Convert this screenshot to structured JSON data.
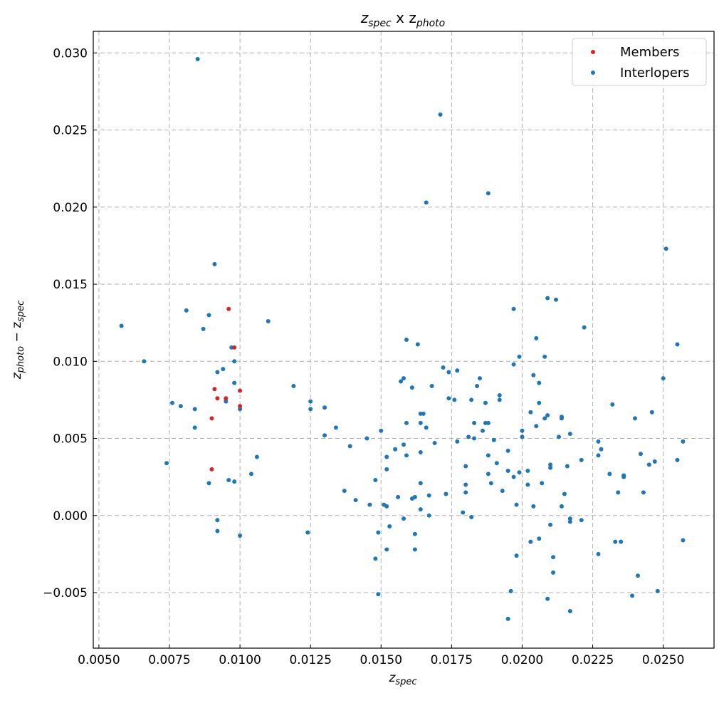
{
  "chart_data": {
    "type": "scatter",
    "title": {
      "main": "z",
      "sub1": "spec",
      "mid": " x z",
      "sub2": "photo"
    },
    "xlabel": {
      "main": "z",
      "sub": "spec"
    },
    "ylabel": {
      "a": "z",
      "a_sub": "photo",
      "op": " − z",
      "b_sub": "spec"
    },
    "xlim": [
      0.0048,
      0.0268
    ],
    "ylim": [
      -0.0086,
      0.0314
    ],
    "xticks": [
      "0.0050",
      "0.0075",
      "0.0100",
      "0.0125",
      "0.0150",
      "0.0175",
      "0.0200",
      "0.0225",
      "0.0250"
    ],
    "yticks": [
      "−0.005",
      "0.000",
      "0.005",
      "0.010",
      "0.015",
      "0.020",
      "0.025",
      "0.030"
    ],
    "grid": true,
    "legend_position": "top-right",
    "series": [
      {
        "name": "Members",
        "color": "#d62728",
        "points": [
          [
            0.0096,
            0.0134
          ],
          [
            0.0098,
            0.0109
          ],
          [
            0.0091,
            0.0082
          ],
          [
            0.0092,
            0.0076
          ],
          [
            0.0095,
            0.0076
          ],
          [
            0.01,
            0.0081
          ],
          [
            0.01,
            0.0071
          ],
          [
            0.009,
            0.0063
          ],
          [
            0.009,
            0.003
          ]
        ]
      },
      {
        "name": "Interlopers",
        "color": "#1f77b4",
        "points": [
          [
            0.0085,
            0.0296
          ],
          [
            0.0171,
            0.026
          ],
          [
            0.0188,
            0.0209
          ],
          [
            0.0166,
            0.0203
          ],
          [
            0.0251,
            0.0173
          ],
          [
            0.0091,
            0.0163
          ],
          [
            0.0058,
            0.0123
          ],
          [
            0.0066,
            0.01
          ],
          [
            0.0081,
            0.0133
          ],
          [
            0.0089,
            0.013
          ],
          [
            0.0087,
            0.0121
          ],
          [
            0.011,
            0.0126
          ],
          [
            0.0097,
            0.0109
          ],
          [
            0.0098,
            0.01
          ],
          [
            0.0094,
            0.0095
          ],
          [
            0.0092,
            0.0093
          ],
          [
            0.0098,
            0.0086
          ],
          [
            0.0095,
            0.0074
          ],
          [
            0.01,
            0.0069
          ],
          [
            0.0076,
            0.0073
          ],
          [
            0.0079,
            0.0071
          ],
          [
            0.0084,
            0.0069
          ],
          [
            0.0084,
            0.0057
          ],
          [
            0.0074,
            0.0034
          ],
          [
            0.0106,
            0.0038
          ],
          [
            0.0104,
            0.0027
          ],
          [
            0.0096,
            0.0023
          ],
          [
            0.0098,
            0.0022
          ],
          [
            0.0089,
            0.0021
          ],
          [
            0.0092,
            -0.0003
          ],
          [
            0.0092,
            -0.001
          ],
          [
            0.01,
            -0.0013
          ],
          [
            0.0119,
            0.0084
          ],
          [
            0.0125,
            0.0074
          ],
          [
            0.0125,
            0.0069
          ],
          [
            0.013,
            0.007
          ],
          [
            0.013,
            0.0052
          ],
          [
            0.0134,
            0.0057
          ],
          [
            0.0124,
            -0.0011
          ],
          [
            0.0139,
            0.0045
          ],
          [
            0.0137,
            0.0016
          ],
          [
            0.0141,
            0.001
          ],
          [
            0.0145,
            0.005
          ],
          [
            0.0146,
            0.0007
          ],
          [
            0.0148,
            0.0023
          ],
          [
            0.0148,
            -0.0028
          ],
          [
            0.0149,
            -0.0011
          ],
          [
            0.0149,
            -0.0051
          ],
          [
            0.015,
            0.0055
          ],
          [
            0.0151,
            0.0007
          ],
          [
            0.0152,
            0.0038
          ],
          [
            0.0152,
            0.003
          ],
          [
            0.0152,
            0.0006
          ],
          [
            0.0152,
            -0.0022
          ],
          [
            0.0153,
            -0.0007
          ],
          [
            0.0155,
            0.0043
          ],
          [
            0.0156,
            0.0012
          ],
          [
            0.0157,
            0.0087
          ],
          [
            0.0158,
            0.0089
          ],
          [
            0.0158,
            0.0046
          ],
          [
            0.0158,
            -0.0002
          ],
          [
            0.0159,
            0.0114
          ],
          [
            0.0159,
            0.006
          ],
          [
            0.0159,
            0.0039
          ],
          [
            0.0161,
            0.0083
          ],
          [
            0.0161,
            0.0011
          ],
          [
            0.0162,
            0.0012
          ],
          [
            0.0162,
            -0.0012
          ],
          [
            0.0162,
            -0.0022
          ],
          [
            0.0163,
            0.0111
          ],
          [
            0.0164,
            0.0066
          ],
          [
            0.0164,
            0.006
          ],
          [
            0.0164,
            0.0041
          ],
          [
            0.0164,
            0.0021
          ],
          [
            0.0164,
            0.0004
          ],
          [
            0.0165,
            0.0066
          ],
          [
            0.0166,
            0.0057
          ],
          [
            0.0167,
            0.0013
          ],
          [
            0.0167,
            0.0
          ],
          [
            0.0168,
            0.0084
          ],
          [
            0.0169,
            0.0047
          ],
          [
            0.0172,
            0.0096
          ],
          [
            0.0173,
            0.0014
          ],
          [
            0.0174,
            0.0093
          ],
          [
            0.0174,
            0.0076
          ],
          [
            0.0176,
            0.0075
          ],
          [
            0.0177,
            0.0094
          ],
          [
            0.0177,
            0.0048
          ],
          [
            0.0179,
            0.0002
          ],
          [
            0.018,
            0.0032
          ],
          [
            0.018,
            0.002
          ],
          [
            0.018,
            0.0015
          ],
          [
            0.0181,
            0.0051
          ],
          [
            0.0182,
            0.0075
          ],
          [
            0.0182,
            -0.0001
          ],
          [
            0.0183,
            0.006
          ],
          [
            0.0183,
            0.005
          ],
          [
            0.0184,
            0.0084
          ],
          [
            0.0185,
            0.0089
          ],
          [
            0.0186,
            0.0055
          ],
          [
            0.0187,
            0.0073
          ],
          [
            0.0187,
            0.006
          ],
          [
            0.0188,
            0.006
          ],
          [
            0.0188,
            0.0039
          ],
          [
            0.0188,
            0.0027
          ],
          [
            0.0189,
            0.0021
          ],
          [
            0.019,
            0.0049
          ],
          [
            0.0191,
            0.0034
          ],
          [
            0.0192,
            0.0078
          ],
          [
            0.0192,
            0.0075
          ],
          [
            0.0193,
            0.0016
          ],
          [
            0.0195,
            0.0042
          ],
          [
            0.0195,
            0.0029
          ],
          [
            0.0195,
            -0.0067
          ],
          [
            0.0196,
            -0.0049
          ],
          [
            0.0197,
            0.0134
          ],
          [
            0.0197,
            0.0098
          ],
          [
            0.0197,
            0.0025
          ],
          [
            0.0198,
            0.0007
          ],
          [
            0.0198,
            -0.0026
          ],
          [
            0.0199,
            0.0103
          ],
          [
            0.0199,
            0.0028
          ],
          [
            0.02,
            0.0051
          ],
          [
            0.02,
            0.0055
          ],
          [
            0.0202,
            0.0029
          ],
          [
            0.0202,
            0.002
          ],
          [
            0.0203,
            0.0067
          ],
          [
            0.0203,
            -0.0017
          ],
          [
            0.0204,
            0.0091
          ],
          [
            0.0204,
            0.0006
          ],
          [
            0.0205,
            0.0115
          ],
          [
            0.0205,
            0.0058
          ],
          [
            0.0206,
            0.0086
          ],
          [
            0.0206,
            0.0073
          ],
          [
            0.0206,
            -0.0015
          ],
          [
            0.0207,
            0.0021
          ],
          [
            0.0208,
            0.0103
          ],
          [
            0.0208,
            0.0063
          ],
          [
            0.0209,
            0.0141
          ],
          [
            0.0209,
            0.0065
          ],
          [
            0.0209,
            -0.0054
          ],
          [
            0.021,
            0.0033
          ],
          [
            0.021,
            0.0031
          ],
          [
            0.021,
            -0.0006
          ],
          [
            0.0211,
            -0.0037
          ],
          [
            0.0211,
            -0.0027
          ],
          [
            0.0212,
            0.014
          ],
          [
            0.0213,
            0.0051
          ],
          [
            0.0214,
            0.0063
          ],
          [
            0.0214,
            0.0064
          ],
          [
            0.0214,
            0.0006
          ],
          [
            0.0215,
            0.0014
          ],
          [
            0.0216,
            0.0032
          ],
          [
            0.0217,
            0.0053
          ],
          [
            0.0217,
            -0.0002
          ],
          [
            0.0217,
            -0.0004
          ],
          [
            0.0217,
            -0.0062
          ],
          [
            0.0221,
            0.0036
          ],
          [
            0.0221,
            -0.0003
          ],
          [
            0.0222,
            0.0122
          ],
          [
            0.0227,
            0.0039
          ],
          [
            0.0227,
            0.0048
          ],
          [
            0.0227,
            -0.0025
          ],
          [
            0.0228,
            0.0043
          ],
          [
            0.0231,
            0.0027
          ],
          [
            0.0232,
            0.0072
          ],
          [
            0.0233,
            -0.0017
          ],
          [
            0.0234,
            0.0015
          ],
          [
            0.0235,
            -0.0017
          ],
          [
            0.0236,
            0.0025
          ],
          [
            0.0236,
            0.0026
          ],
          [
            0.0239,
            -0.0052
          ],
          [
            0.024,
            0.0063
          ],
          [
            0.0241,
            -0.0039
          ],
          [
            0.0242,
            0.004
          ],
          [
            0.0243,
            0.0015
          ],
          [
            0.0245,
            0.0033
          ],
          [
            0.0246,
            0.0067
          ],
          [
            0.0247,
            0.0035
          ],
          [
            0.0248,
            -0.0049
          ],
          [
            0.025,
            0.0089
          ],
          [
            0.0255,
            0.0036
          ],
          [
            0.0255,
            0.0111
          ],
          [
            0.0257,
            0.0048
          ],
          [
            0.0257,
            -0.0016
          ]
        ]
      }
    ]
  }
}
